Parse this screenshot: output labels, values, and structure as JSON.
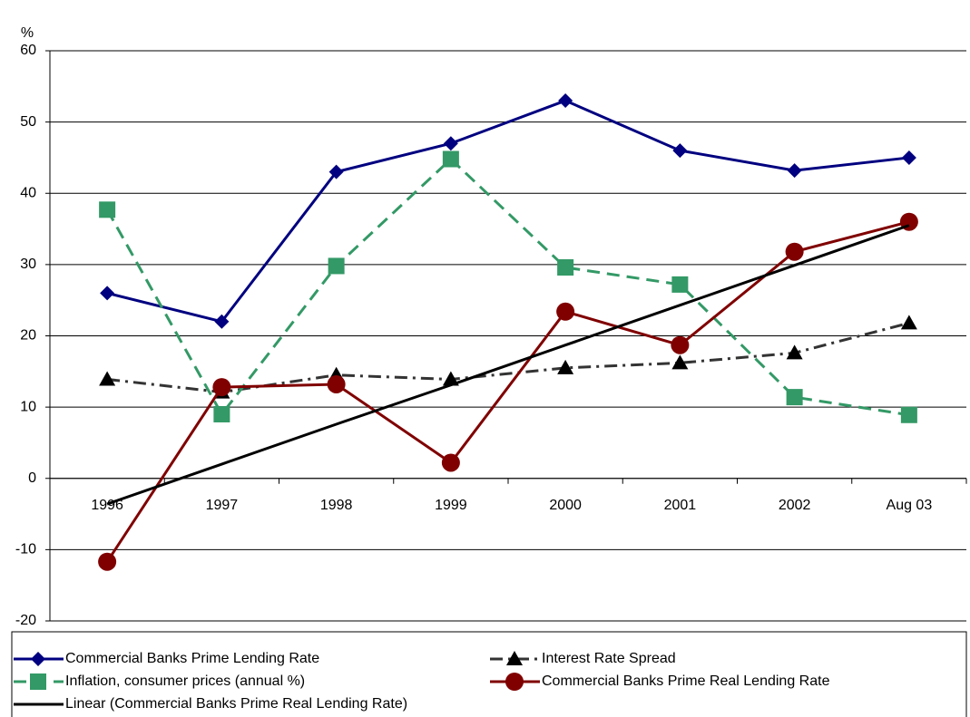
{
  "chart_data": {
    "type": "line",
    "y_axis_label": "%",
    "categories": [
      "1996",
      "1997",
      "1998",
      "1999",
      "2000",
      "2001",
      "2002",
      "Aug 03"
    ],
    "ylim": [
      -20,
      60
    ],
    "yticks": [
      -20,
      -10,
      0,
      10,
      20,
      30,
      40,
      50,
      60
    ],
    "grid": true,
    "series": [
      {
        "name": "Commercial Banks Prime Lending Rate",
        "color": "#000080",
        "marker": "diamond",
        "dash": "solid",
        "values": [
          26,
          22,
          43,
          47,
          53,
          46,
          43.2,
          45
        ]
      },
      {
        "name": "Interest Rate Spread",
        "color": "#333333",
        "marker": "triangle",
        "dash": "dashdot",
        "values": [
          13.9,
          12.1,
          14.5,
          13.9,
          15.5,
          16.2,
          17.6,
          21.8
        ]
      },
      {
        "name": "Inflation, consumer prices (annual %)",
        "color": "#339966",
        "marker": "square",
        "dash": "dashed",
        "values": [
          37.7,
          9,
          29.8,
          44.8,
          29.6,
          27.2,
          11.4,
          8.9
        ]
      },
      {
        "name": "Commercial Banks Prime Real Lending Rate",
        "color": "#800000",
        "marker": "circle",
        "dash": "solid",
        "values": [
          -11.7,
          12.8,
          13.2,
          2.2,
          23.4,
          18.7,
          31.8,
          36
        ]
      },
      {
        "name": "Linear (Commercial Banks Prime Real Lending Rate)",
        "color": "#000000",
        "marker": "none",
        "dash": "solid",
        "values": [
          -3.6,
          2,
          7.6,
          13.1,
          18.7,
          24.3,
          29.9,
          35.5
        ]
      }
    ]
  }
}
